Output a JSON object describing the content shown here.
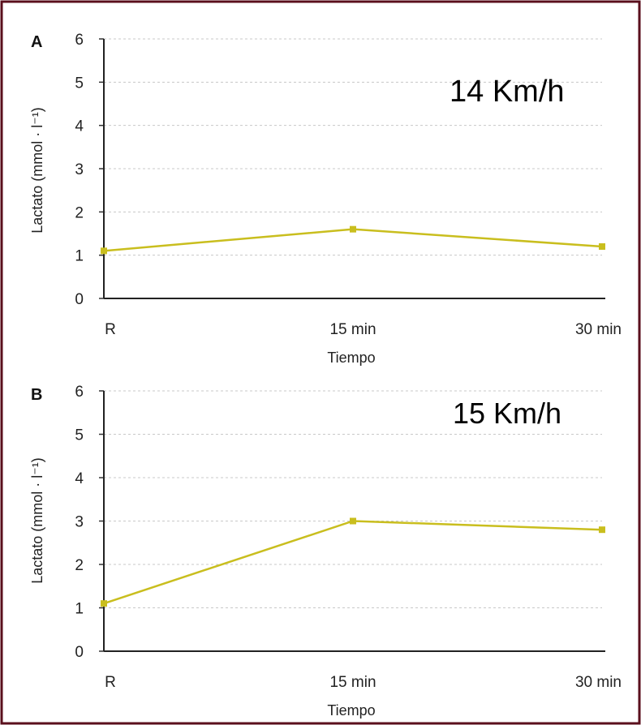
{
  "frame_color": "#5a0f1c",
  "series_color": "#c9be1e",
  "grid_color": "#c8c8c8",
  "chart_data": [
    {
      "type": "line",
      "panel_letter": "A",
      "annotation": "14 Km/h",
      "ylabel": "Lactato (mmol · l⁻¹)",
      "xlabel": "Tiempo",
      "categories": [
        "R",
        "15 min",
        "30 min"
      ],
      "values": [
        1.1,
        1.6,
        1.2
      ],
      "yticks": [
        0,
        1,
        2,
        3,
        4,
        5,
        6
      ],
      "ylim": [
        0,
        6
      ],
      "grid": true
    },
    {
      "type": "line",
      "panel_letter": "B",
      "annotation": "15 Km/h",
      "ylabel": "Lactato (mmol · l⁻¹)",
      "xlabel": "Tiempo",
      "categories": [
        "R",
        "15 min",
        "30 min"
      ],
      "values": [
        1.1,
        3.0,
        2.8
      ],
      "yticks": [
        0,
        1,
        2,
        3,
        4,
        5,
        6
      ],
      "ylim": [
        0,
        6
      ],
      "grid": true
    }
  ]
}
